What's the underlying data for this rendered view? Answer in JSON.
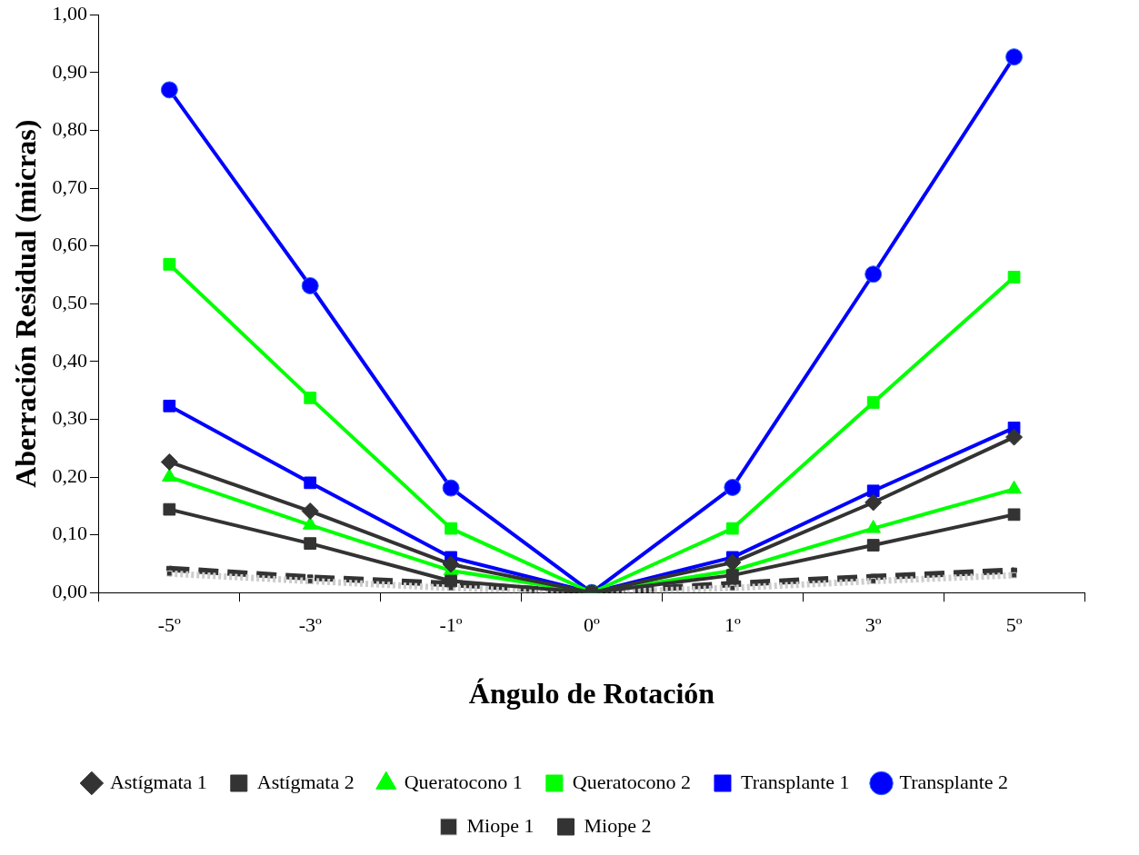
{
  "chart_data": {
    "type": "line",
    "xlabel": "Ángulo de Rotación",
    "ylabel": "Aberración Residual (micras)",
    "categories": [
      "-5º",
      "-3º",
      "-1º",
      "0º",
      "1º",
      "3º",
      "5º"
    ],
    "ylim": [
      0,
      1
    ],
    "yticks": [
      {
        "value": 0,
        "label": "0,00"
      },
      {
        "value": 0.1,
        "label": "0,10"
      },
      {
        "value": 0.2,
        "label": "0,20"
      },
      {
        "value": 0.3,
        "label": "0,30"
      },
      {
        "value": 0.4,
        "label": "0,40"
      },
      {
        "value": 0.5,
        "label": "0,50"
      },
      {
        "value": 0.6,
        "label": "0,60"
      },
      {
        "value": 0.7,
        "label": "0,70"
      },
      {
        "value": 0.8,
        "label": "0,80"
      },
      {
        "value": 0.9,
        "label": "0,90"
      },
      {
        "value": 1,
        "label": "1,00"
      }
    ],
    "grid": false,
    "legend": "bottom",
    "line_style": "solid",
    "series": [
      {
        "name": "Astígmata 1",
        "color": "#333333",
        "marker": "diamond",
        "values": [
          0.226,
          0.141,
          0.049,
          0,
          0.052,
          0.156,
          0.269
        ]
      },
      {
        "name": "Astígmata 2",
        "color": "#333333",
        "marker": "square",
        "values": [
          0.144,
          0.085,
          0.02,
          0,
          0.03,
          0.082,
          0.135
        ]
      },
      {
        "name": "Queratocono 1",
        "color": "#00ff00",
        "marker": "triangle",
        "values": [
          0.2,
          0.117,
          0.038,
          0,
          0.038,
          0.111,
          0.179
        ]
      },
      {
        "name": "Queratocono 2",
        "color": "#00ff00",
        "marker": "square",
        "values": [
          0.568,
          0.337,
          0.111,
          0,
          0.111,
          0.329,
          0.546
        ]
      },
      {
        "name": "Transplante 1",
        "color": "#0000ff",
        "marker": "square",
        "values": [
          0.323,
          0.19,
          0.061,
          0,
          0.061,
          0.176,
          0.285
        ]
      },
      {
        "name": "Transplante 2",
        "color": "#0000ff",
        "marker": "circle",
        "values": [
          0.87,
          0.531,
          0.181,
          0,
          0.182,
          0.551,
          0.927
        ]
      },
      {
        "name": "Miope 1",
        "color": "#cccccc",
        "marker": "square",
        "line_style": "dotted",
        "values": [
          0.033,
          0.02,
          0.008,
          0,
          0.008,
          0.02,
          0.03
        ]
      },
      {
        "name": "Miope 2",
        "color": "#333333",
        "marker": "square",
        "line_style": "dashed",
        "values": [
          0.041,
          0.026,
          0.015,
          0,
          0.015,
          0.027,
          0.038
        ]
      }
    ]
  }
}
